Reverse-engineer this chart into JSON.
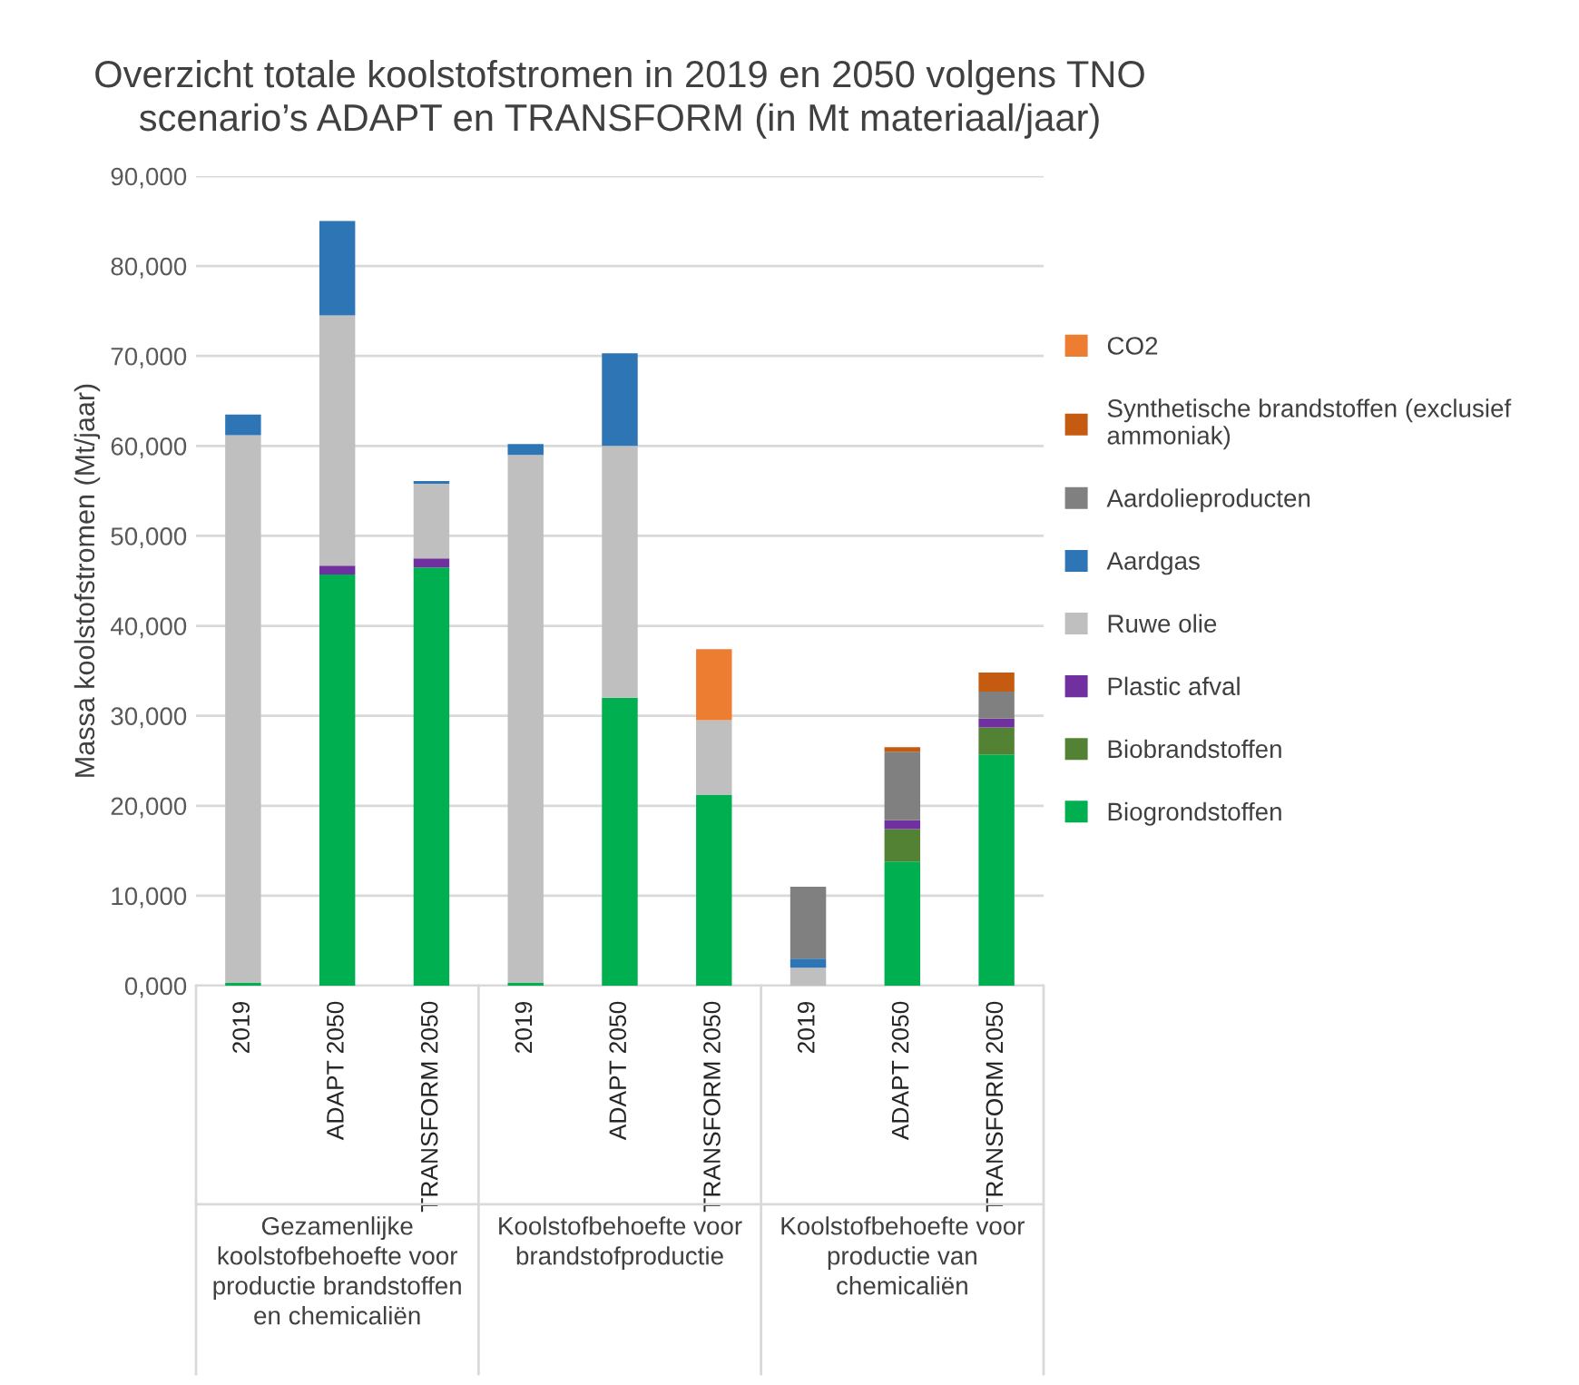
{
  "chart_data": {
    "type": "bar",
    "stacked": true,
    "title": "Overzicht totale koolstofstromen in 2019 en 2050 volgens TNO scenario’s ADAPT en TRANSFORM (in Mt materiaal/jaar)",
    "ylabel": "Massa koolstofstromen (Mt/jaar)",
    "categories": [
      "2019",
      "ADAPT 2050",
      "TRANSFORM 2050",
      "2019",
      "ADAPT 2050",
      "TRANSFORM 2050",
      "2019",
      "ADAPT 2050",
      "TRANSFORM 2050"
    ],
    "annotations": [
      "Gezamenlijke koolstofbehoefte voor productie brandstoffen en chemicaliën",
      "Koolstofbehoefte voor brandstofproductie",
      "Koolstofbehoefte voor productie van chemicaliën"
    ],
    "series": [
      {
        "name": "Biogrondstoffen",
        "color": "#00b050",
        "values": [
          300,
          45700,
          46500,
          300,
          32000,
          21200,
          0,
          13800,
          25700
        ]
      },
      {
        "name": "Biobrandstoffen",
        "color": "#548235",
        "values": [
          0,
          0,
          0,
          0,
          0,
          0,
          0,
          3600,
          3000
        ]
      },
      {
        "name": "Plastic afval",
        "color": "#7030a0",
        "values": [
          0,
          1000,
          1000,
          0,
          0,
          0,
          0,
          1000,
          1000
        ]
      },
      {
        "name": "Ruwe olie",
        "color": "#bfbfbf",
        "values": [
          60900,
          27800,
          8300,
          58700,
          28000,
          8300,
          2000,
          0,
          0
        ]
      },
      {
        "name": "Aardgas",
        "color": "#2e75b6",
        "values": [
          2300,
          10500,
          300,
          1200,
          10300,
          0,
          1000,
          0,
          0
        ]
      },
      {
        "name": "Aardolieproducten",
        "color": "#808080",
        "values": [
          0,
          0,
          0,
          0,
          0,
          0,
          8000,
          7600,
          3000
        ]
      },
      {
        "name": "Synthetische brandstoffen (exclusief ammoniak)",
        "color": "#c55a11",
        "values": [
          0,
          0,
          0,
          0,
          0,
          0,
          0,
          500,
          2100
        ]
      },
      {
        "name": "CO2",
        "color": "#ed7d31",
        "values": [
          0,
          0,
          0,
          0,
          0,
          7900,
          0,
          0,
          0
        ]
      }
    ],
    "ylim": [
      0,
      90000
    ],
    "yticks": [
      {
        "value": 0,
        "label": "0,000"
      },
      {
        "value": 10000,
        "label": "10,000"
      },
      {
        "value": 20000,
        "label": "20,000"
      },
      {
        "value": 30000,
        "label": "30,000"
      },
      {
        "value": 40000,
        "label": "40,000"
      },
      {
        "value": 50000,
        "label": "50,000"
      },
      {
        "value": 60000,
        "label": "60,000"
      },
      {
        "value": 70000,
        "label": "70,000"
      },
      {
        "value": 80000,
        "label": "80,000"
      },
      {
        "value": 90000,
        "label": "90,000"
      }
    ],
    "grid": "y",
    "legend": "right"
  }
}
